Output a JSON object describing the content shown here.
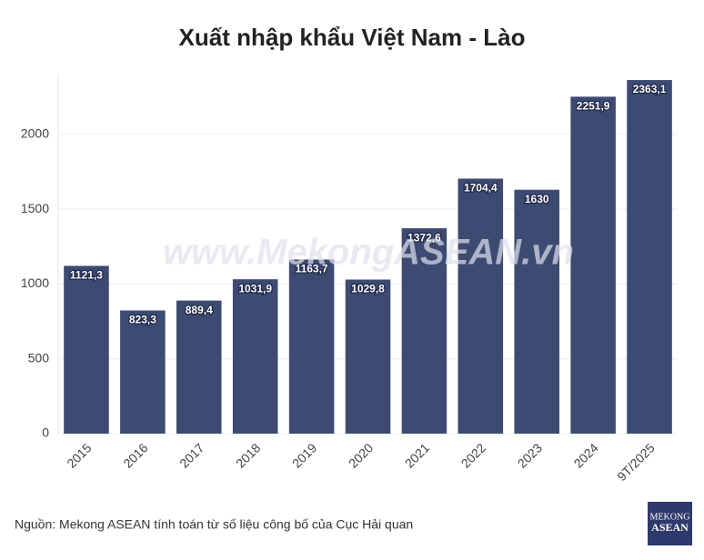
{
  "chart_data": {
    "type": "bar",
    "title": "Xuất nhập khẩu Việt Nam - Lào",
    "categories": [
      "2015",
      "2016",
      "2017",
      "2018",
      "2019",
      "2020",
      "2021",
      "2022",
      "2023",
      "2024",
      "9T/2025"
    ],
    "values": [
      1121.3,
      823.3,
      889.4,
      1031.9,
      1163.7,
      1029.8,
      1372.6,
      1704.4,
      1630,
      2251.9,
      2363.1
    ],
    "value_labels": [
      "1121,3",
      "823,3",
      "889,4",
      "1031,9",
      "1163,7",
      "1029,8",
      "1372,6",
      "1704,4",
      "1630",
      "2251,9",
      "2363,1"
    ],
    "color": "#3d4a72",
    "ylim": [
      0,
      2400
    ],
    "yticks": [
      0,
      500,
      1000,
      1500,
      2000
    ],
    "grid": true,
    "watermark": "www.MekongASEAN.vn",
    "source": "Nguồn: Mekong ASEAN tính toán từ số liệu công bố của Cục Hải quan",
    "logo": [
      "MEKONG",
      "ASEAN"
    ]
  }
}
